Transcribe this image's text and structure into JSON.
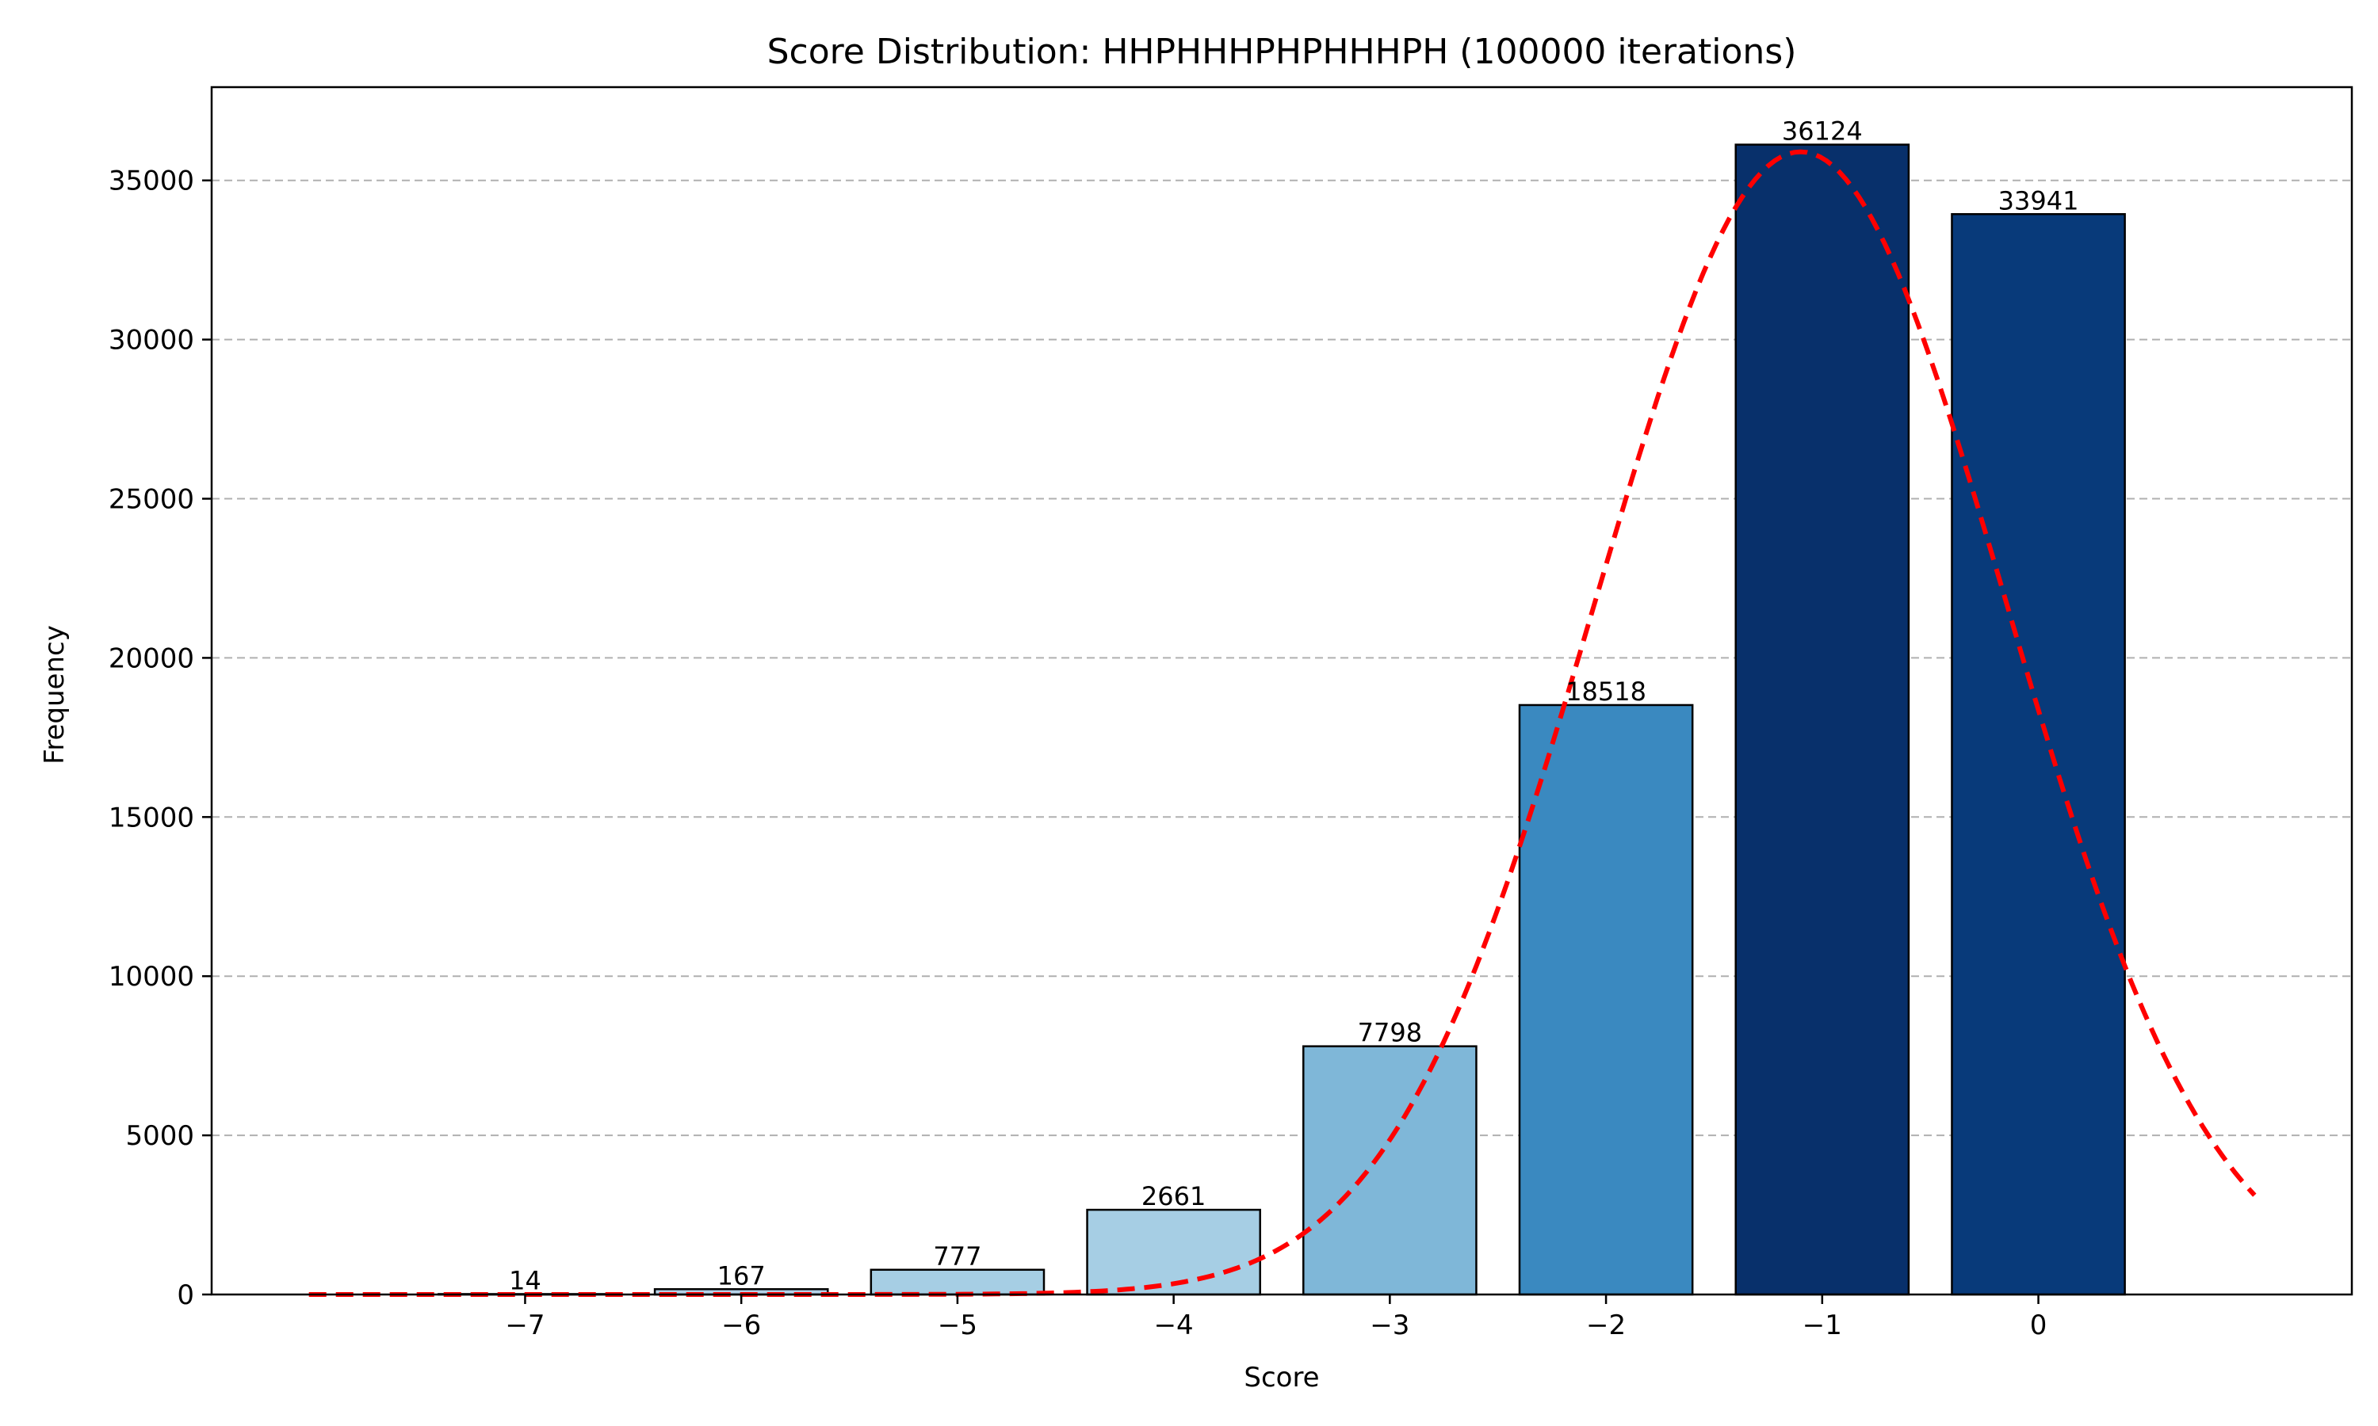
{
  "chart_data": {
    "type": "bar",
    "title": "Score Distribution: HHPHHHPHPHHHPH (100000 iterations)",
    "xlabel": "Score",
    "ylabel": "Frequency",
    "categories": [
      -7,
      -6,
      -5,
      -4,
      -3,
      -2,
      -1,
      0
    ],
    "x_tick_labels": [
      "−7",
      "−6",
      "−5",
      "−4",
      "−3",
      "−2",
      "−1",
      "0"
    ],
    "values": [
      14,
      167,
      777,
      2661,
      7798,
      18518,
      36124,
      33941
    ],
    "value_labels": [
      "14",
      "167",
      "777",
      "2661",
      "7798",
      "18518",
      "36124",
      "33941"
    ],
    "bar_colors": [
      "#c6dbef",
      "#b4d2e9",
      "#a6cee4",
      "#a6cee4",
      "#7fb7d8",
      "#3a89c0",
      "#08306b",
      "#083a7a"
    ],
    "bar_edge_color": "#000000",
    "y_ticks": [
      0,
      5000,
      10000,
      15000,
      20000,
      25000,
      30000,
      35000
    ],
    "y_tick_labels": [
      "0",
      "5000",
      "10000",
      "15000",
      "20000",
      "25000",
      "30000",
      "35000"
    ],
    "xlim": [
      -8.45,
      1.45
    ],
    "ylim": [
      0,
      37930
    ],
    "grid": {
      "axis": "y",
      "style": "dashed",
      "color": "#b0b0b0"
    },
    "fit_curve": {
      "type": "normal",
      "color": "#ff0000",
      "style": "dashed",
      "mean": -1.1,
      "std": 0.95,
      "peak": 35900,
      "x_range": [
        -8,
        1
      ]
    }
  }
}
